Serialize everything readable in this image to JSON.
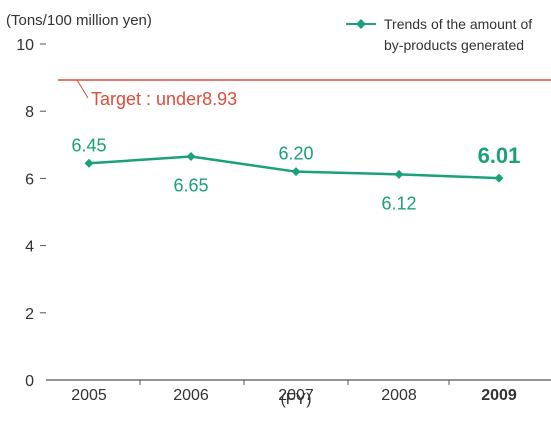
{
  "colors": {
    "series": "#1aa17a",
    "target": "#e04b3a",
    "axis": "#555555",
    "text": "#333333"
  },
  "chart_data": {
    "type": "line",
    "ylabel": "(Tons/100 million yen)",
    "xlabel": "(FY)",
    "ylim": [
      0,
      10
    ],
    "yticks": [
      "0",
      "2",
      "4",
      "6",
      "8",
      "10"
    ],
    "categories": [
      "2005",
      "2006",
      "2007",
      "2008",
      "2009"
    ],
    "highlight_category": "2009",
    "series": [
      {
        "name": "Trends of the amount of by-products generated",
        "legend_lines": [
          "Trends of the amount of",
          "by-products generated"
        ],
        "values": [
          6.45,
          6.65,
          6.2,
          6.12,
          6.01
        ],
        "labels": [
          "6.45",
          "6.65",
          "6.20",
          "6.12",
          "6.01"
        ]
      }
    ],
    "target": {
      "value": 8.93,
      "label": "Target : under8.93"
    },
    "legend_position": "top-right",
    "grid": false
  }
}
